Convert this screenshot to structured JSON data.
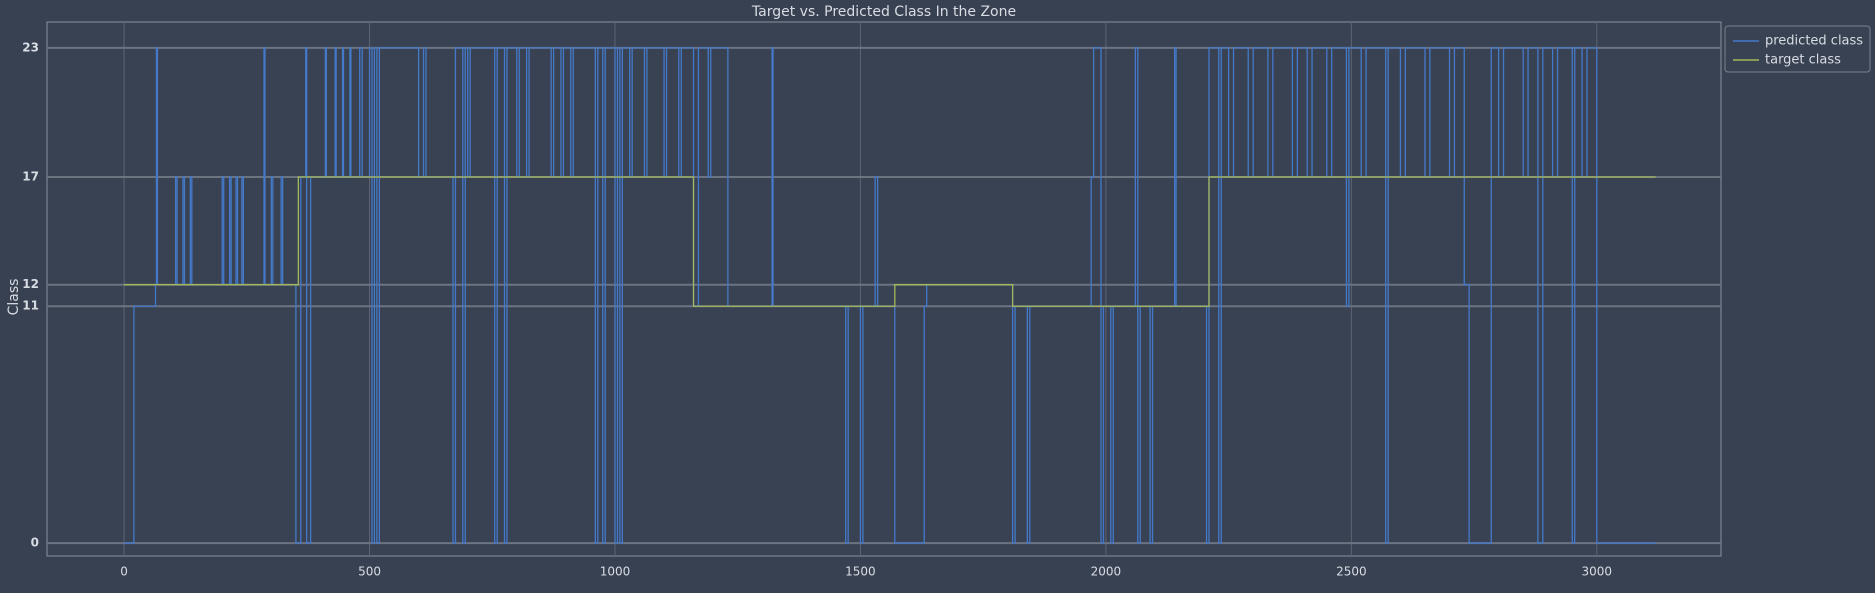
{
  "chart_data": {
    "type": "line",
    "title": "Target vs. Predicted Class In the Zone",
    "ylabel": "Class",
    "drawstyle": "steps-post",
    "xlim": [
      -157,
      3253
    ],
    "ylim": [
      -0.6,
      24.2
    ],
    "xticks": [
      0,
      500,
      1000,
      1500,
      2000,
      2500,
      3000
    ],
    "yticks": [
      0,
      11,
      12,
      17,
      23
    ],
    "grid": true,
    "legend": "outside upper right",
    "series": [
      {
        "name": "predicted class",
        "color": "#4479c9",
        "x": [
          0,
          20,
          64,
          66,
          68,
          105,
          108,
          120,
          123,
          135,
          138,
          200,
          203,
          215,
          218,
          228,
          231,
          240,
          243,
          285,
          287,
          300,
          303,
          320,
          323,
          350,
          360,
          370,
          372,
          380,
          410,
          412,
          430,
          432,
          445,
          447,
          460,
          462,
          480,
          485,
          500,
          505,
          510,
          515,
          520,
          600,
          610,
          615,
          670,
          675,
          690,
          695,
          700,
          705,
          755,
          760,
          775,
          780,
          800,
          805,
          820,
          825,
          870,
          875,
          890,
          895,
          910,
          915,
          960,
          965,
          975,
          980,
          1000,
          1005,
          1010,
          1015,
          1030,
          1035,
          1060,
          1065,
          1100,
          1105,
          1130,
          1135,
          1160,
          1170,
          1190,
          1195,
          1230,
          1320,
          1322,
          1470,
          1475,
          1500,
          1505,
          1530,
          1535,
          1570,
          1630,
          1635,
          1810,
          1815,
          1840,
          1845,
          1970,
          1975,
          1990,
          1995,
          2010,
          2015,
          2060,
          2065,
          2070,
          2090,
          2095,
          2140,
          2143,
          2205,
          2210,
          2230,
          2235,
          2250,
          2260,
          2290,
          2300,
          2330,
          2340,
          2380,
          2390,
          2410,
          2420,
          2450,
          2460,
          2490,
          2495,
          2520,
          2530,
          2570,
          2575,
          2600,
          2610,
          2650,
          2660,
          2700,
          2710,
          2730,
          2740,
          2785,
          2800,
          2810,
          2850,
          2860,
          2880,
          2890,
          2910,
          2920,
          2950,
          2955,
          2970,
          2980,
          3000,
          3120
        ],
        "values": [
          0,
          11,
          12,
          23,
          12,
          17,
          12,
          17,
          12,
          17,
          12,
          17,
          12,
          17,
          12,
          17,
          12,
          17,
          12,
          23,
          12,
          17,
          12,
          17,
          12,
          0,
          17,
          23,
          0,
          17,
          23,
          17,
          23,
          17,
          23,
          17,
          23,
          17,
          23,
          17,
          23,
          0,
          23,
          0,
          23,
          17,
          23,
          17,
          0,
          23,
          0,
          23,
          17,
          23,
          0,
          23,
          0,
          23,
          17,
          23,
          17,
          23,
          17,
          23,
          17,
          23,
          17,
          23,
          0,
          23,
          0,
          23,
          0,
          23,
          0,
          23,
          17,
          23,
          17,
          23,
          17,
          23,
          17,
          23,
          11,
          23,
          17,
          23,
          11,
          23,
          11,
          0,
          11,
          0,
          11,
          17,
          11,
          0,
          11,
          12,
          0,
          11,
          0,
          11,
          17,
          23,
          0,
          11,
          0,
          11,
          23,
          0,
          11,
          0,
          11,
          23,
          11,
          0,
          23,
          0,
          23,
          17,
          23,
          17,
          23,
          17,
          23,
          17,
          23,
          17,
          23,
          17,
          23,
          11,
          23,
          17,
          23,
          0,
          23,
          17,
          23,
          17,
          23,
          17,
          23,
          12,
          0,
          23,
          17,
          23,
          17,
          23,
          0,
          23,
          17,
          23,
          0,
          23,
          17,
          23,
          0,
          0
        ]
      },
      {
        "name": "target class",
        "color": "#a4b85a",
        "x": [
          0,
          355,
          1160,
          1570,
          1810,
          2210,
          3120
        ],
        "values": [
          12,
          17,
          11,
          12,
          11,
          17,
          17
        ]
      }
    ]
  }
}
